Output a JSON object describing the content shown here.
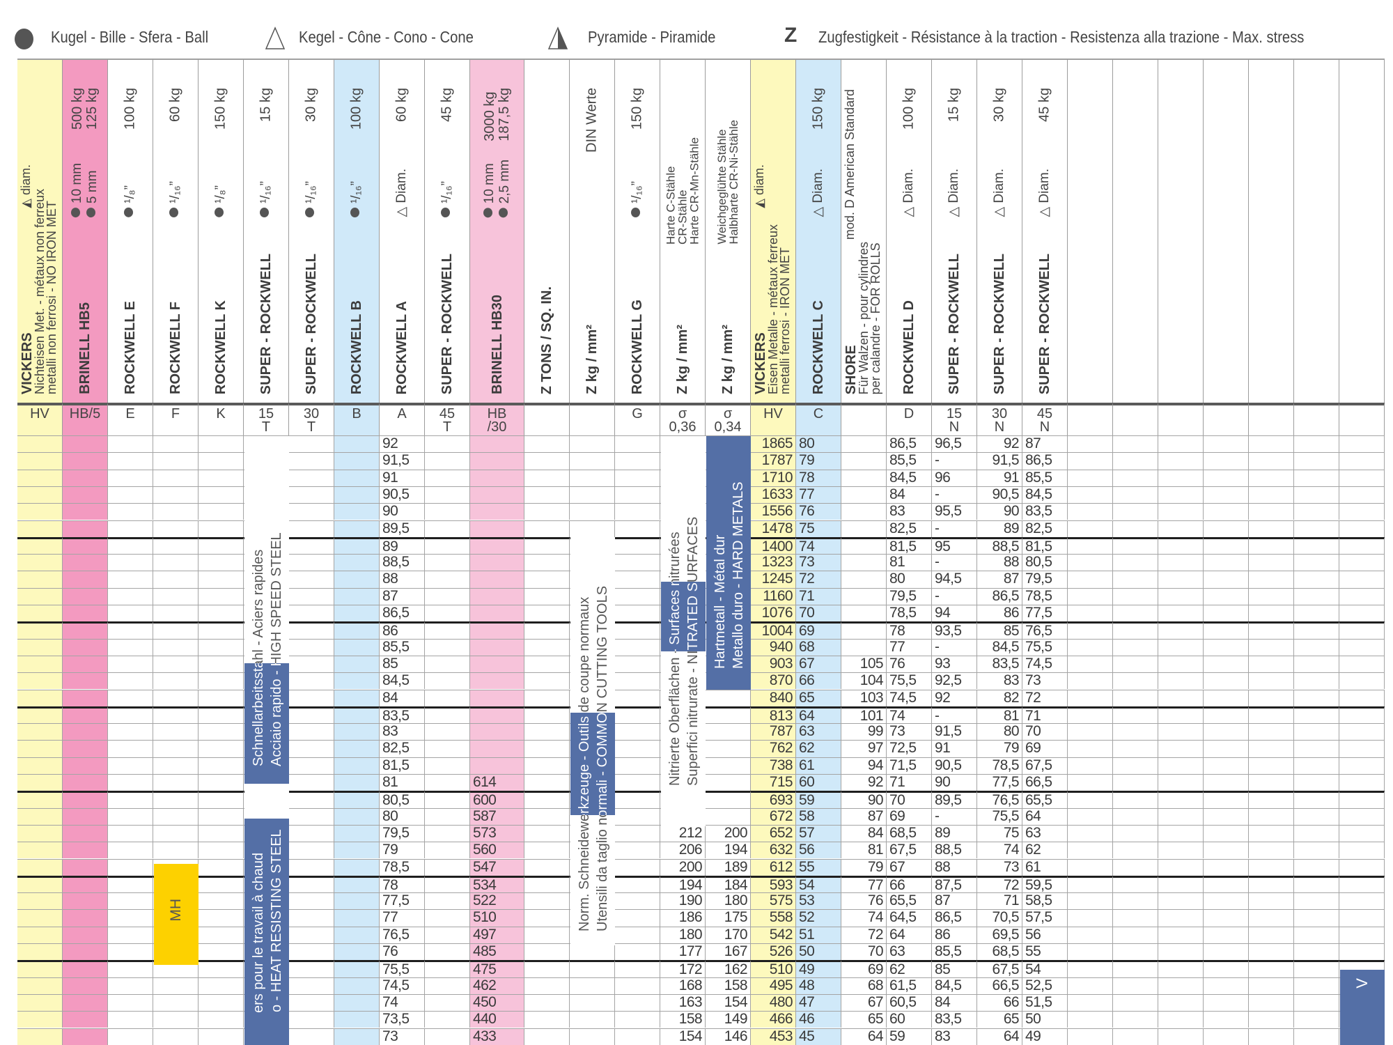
{
  "palette": {
    "yellow": "#fdf9bd",
    "pink": "#f39ac0",
    "blue": "#d0e9f9",
    "pinklight": "#f7c3da",
    "white": "#ffffff",
    "band_blue": "#546fa6",
    "mh_yellow": "#fdd100"
  },
  "legend": {
    "ball": {
      "icon": "ball-icon",
      "text": "Kugel - Bille - Sfera - Ball"
    },
    "cone": {
      "icon": "cone-icon",
      "text": "Kegel - Cône - Cono - Cone"
    },
    "pyramid": {
      "icon": "pyramid-icon",
      "text": "Pyramide - Piramide"
    },
    "tensile": {
      "symbol": "Z",
      "text": "Zugfestigkeit - Résistance à la traction - Resistenza alla trazione - Max. stress"
    }
  },
  "table": {
    "columns": [
      {
        "key": "HV1",
        "bg": "yellow",
        "header": {
          "title": "VICKERS",
          "subtitle_lines": [
            "Nichteisen Met. - métaux non ferreux",
            "metalli non ferrosi - NO IRON MET"
          ],
          "marker": {
            "icon": "pyramid",
            "text": "diam."
          }
        },
        "sub": "HV"
      },
      {
        "key": "HB5",
        "bg": "pink",
        "header": {
          "title": "BRINELL HB5",
          "spec_icon": "ball",
          "spec_lines": [
            "10 mm",
            "5 mm"
          ],
          "load_lines": [
            "500 kg",
            "125 kg"
          ]
        },
        "sub": "HB/5"
      },
      {
        "key": "E",
        "bg": "white",
        "header": {
          "title": "ROCKWELL  E",
          "spec": {
            "icon": "ball",
            "text": "¹/₈”"
          },
          "load": "100 kg"
        },
        "sub": "E"
      },
      {
        "key": "F",
        "bg": "white",
        "header": {
          "title": "ROCKWELL  F",
          "spec": {
            "icon": "ball",
            "text": "¹/₁₆”"
          },
          "load": "60 kg"
        },
        "sub": "F"
      },
      {
        "key": "K",
        "bg": "white",
        "header": {
          "title": "ROCKWELL  K",
          "spec": {
            "icon": "ball",
            "text": "¹/₈”"
          },
          "load": "150 kg"
        },
        "sub": "K"
      },
      {
        "key": "T15",
        "bg": "white",
        "header": {
          "title": "SUPER - ROCKWELL",
          "spec": {
            "icon": "ball",
            "text": "¹/₁₆”"
          },
          "load": "15 kg"
        },
        "sub": "15\nT"
      },
      {
        "key": "T30",
        "bg": "white",
        "header": {
          "title": "SUPER - ROCKWELL",
          "spec": {
            "icon": "ball",
            "text": "¹/₁₆”"
          },
          "load": "30 kg"
        },
        "sub": "30\nT"
      },
      {
        "key": "B",
        "bg": "blue",
        "header": {
          "title": "ROCKWELL  B",
          "spec": {
            "icon": "ball",
            "text": "¹/₁₆”"
          },
          "load": "100 kg"
        },
        "sub": "B"
      },
      {
        "key": "A",
        "bg": "white",
        "header": {
          "title": "ROCKWELL  A",
          "spec": {
            "icon": "cone",
            "text": "Diam."
          },
          "load": "60 kg"
        },
        "sub": "A"
      },
      {
        "key": "T45",
        "bg": "white",
        "header": {
          "title": "SUPER - ROCKWELL",
          "spec": {
            "icon": "ball",
            "text": "¹/₁₆”"
          },
          "load": "45 kg"
        },
        "sub": "45\nT"
      },
      {
        "key": "HB30",
        "bg": "pinklight",
        "header": {
          "title": "BRINELL HB30",
          "spec_icon": "ball",
          "spec_lines": [
            "10 mm",
            "2,5 mm"
          ],
          "load_lines": [
            "3000 kg",
            "187,5 kg"
          ]
        },
        "sub": "HB\n/30"
      },
      {
        "key": "ZT",
        "bg": "white",
        "header": {
          "title": "Z TONS / SQ. IN."
        },
        "sub": ""
      },
      {
        "key": "ZD",
        "bg": "white",
        "header": {
          "title": "Z kg / mm²",
          "load": "DIN Werte"
        },
        "sub": ""
      },
      {
        "key": "G",
        "bg": "white",
        "header": {
          "title": "ROCKWELL  G",
          "spec": {
            "icon": "ball",
            "text": "¹/₁₆”"
          },
          "load": "150 kg"
        },
        "sub": "G"
      },
      {
        "key": "Z036",
        "bg": "white",
        "header": {
          "title": "Z kg / mm²",
          "note_lines": [
            "Harte C-Stähle",
            "CR-Stähle",
            "Harte CR-Mn-Stähle"
          ]
        },
        "sub": "σ\n0,36"
      },
      {
        "key": "Z034",
        "bg": "white",
        "header": {
          "title": "Z kg / mm²",
          "note_lines": [
            "Weichgeglühte Stähle",
            "Halbharte CR-Ni-Stähle"
          ]
        },
        "sub": "σ\n0,34"
      },
      {
        "key": "HV2",
        "bg": "yellow",
        "header": {
          "title": "VICKERS",
          "subtitle_lines": [
            "Eisen Metalle - métaux ferreux",
            "metalli ferrosi - IRON MET"
          ],
          "marker": {
            "icon": "pyramid",
            "text": "diam."
          }
        },
        "sub": "HV"
      },
      {
        "key": "C",
        "bg": "blue",
        "header": {
          "title": "ROCKWELL  C",
          "spec": {
            "icon": "cone",
            "text": "Diam."
          },
          "load": "150 kg"
        },
        "sub": "C"
      },
      {
        "key": "SH",
        "bg": "white",
        "header": {
          "title": "SHORE",
          "subtitle_lines": [
            "Für Walzen - pour cylindres",
            "per calandre - FOR ROLLS"
          ],
          "aside": "mod. D  American Standard"
        },
        "sub": ""
      },
      {
        "key": "D",
        "bg": "white",
        "header": {
          "title": "ROCKWELL  D",
          "spec": {
            "icon": "cone",
            "text": "Diam."
          },
          "load": "100 kg"
        },
        "sub": "D"
      },
      {
        "key": "N15",
        "bg": "white",
        "header": {
          "title": "SUPER - ROCKWELL",
          "spec": {
            "icon": "cone",
            "text": "Diam."
          },
          "load": "15 kg"
        },
        "sub": "15\nN"
      },
      {
        "key": "N30",
        "bg": "white",
        "header": {
          "title": "SUPER - ROCKWELL",
          "spec": {
            "icon": "cone",
            "text": "Diam."
          },
          "load": "30 kg"
        },
        "sub": "30\nN"
      },
      {
        "key": "N45",
        "bg": "white",
        "header": {
          "title": "SUPER - ROCKWELL",
          "spec": {
            "icon": "cone",
            "text": "Diam."
          },
          "load": "45 kg"
        },
        "sub": "45\nN"
      },
      {
        "key": "X23",
        "bg": "white"
      },
      {
        "key": "X24",
        "bg": "white"
      },
      {
        "key": "X25",
        "bg": "white"
      },
      {
        "key": "X26",
        "bg": "white"
      },
      {
        "key": "X27",
        "bg": "white"
      },
      {
        "key": "X28",
        "bg": "white"
      },
      {
        "key": "X29",
        "bg": "white"
      }
    ],
    "values": {
      "A": [
        "92",
        "91,5",
        "91",
        "90,5",
        "90",
        "89,5",
        "89",
        "88,5",
        "88",
        "87",
        "86,5",
        "86",
        "85,5",
        "85",
        "84,5",
        "84",
        "83,5",
        "83",
        "82,5",
        "81,5",
        "81",
        "80,5",
        "80",
        "79,5",
        "79",
        "78,5",
        "78",
        "77,5",
        "77",
        "76,5",
        "76",
        "75,5",
        "74,5",
        "74",
        "73,5",
        "73"
      ],
      "HB30": [
        "",
        "",
        "",
        "",
        "",
        "",
        "",
        "",
        "",
        "",
        "",
        "",
        "",
        "",
        "",
        "",
        "",
        "",
        "",
        "",
        "614",
        "600",
        "587",
        "573",
        "560",
        "547",
        "534",
        "522",
        "510",
        "497",
        "485",
        "475",
        "462",
        "450",
        "440",
        "433"
      ],
      "Z036": [
        "",
        "",
        "",
        "",
        "",
        "",
        "",
        "",
        "",
        "",
        "",
        "",
        "",
        "",
        "",
        "",
        "",
        "",
        "",
        "",
        "",
        "",
        "",
        "212",
        "206",
        "200",
        "194",
        "190",
        "186",
        "180",
        "177",
        "172",
        "168",
        "163",
        "158",
        "154"
      ],
      "Z034": [
        "",
        "",
        "",
        "",
        "",
        "",
        "",
        "",
        "",
        "",
        "",
        "",
        "",
        "",
        "",
        "",
        "",
        "",
        "",
        "",
        "",
        "",
        "",
        "200",
        "194",
        "189",
        "184",
        "180",
        "175",
        "170",
        "167",
        "162",
        "158",
        "154",
        "149",
        "146"
      ],
      "HV2": [
        "1865",
        "1787",
        "1710",
        "1633",
        "1556",
        "1478",
        "1400",
        "1323",
        "1245",
        "1160",
        "1076",
        "1004",
        "940",
        "903",
        "870",
        "840",
        "813",
        "787",
        "762",
        "738",
        "715",
        "693",
        "672",
        "652",
        "632",
        "612",
        "593",
        "575",
        "558",
        "542",
        "526",
        "510",
        "495",
        "480",
        "466",
        "453"
      ],
      "C": [
        "80",
        "79",
        "78",
        "77",
        "76",
        "75",
        "74",
        "73",
        "72",
        "71",
        "70",
        "69",
        "68",
        "67",
        "66",
        "65",
        "64",
        "63",
        "62",
        "61",
        "60",
        "59",
        "58",
        "57",
        "56",
        "55",
        "54",
        "53",
        "52",
        "51",
        "50",
        "49",
        "48",
        "47",
        "46",
        "45"
      ],
      "SH": [
        "",
        "",
        "",
        "",
        "",
        "",
        "",
        "",
        "",
        "",
        "",
        "",
        "",
        "105",
        "104",
        "103",
        "101",
        "99",
        "97",
        "94",
        "92",
        "90",
        "87",
        "84",
        "81",
        "79",
        "77",
        "76",
        "74",
        "72",
        "70",
        "69",
        "68",
        "67",
        "65",
        "64"
      ],
      "D": [
        "86,5",
        "85,5",
        "84,5",
        "84",
        "83",
        "82,5",
        "81,5",
        "81",
        "80",
        "79,5",
        "78,5",
        "78",
        "77",
        "76",
        "75,5",
        "74,5",
        "74",
        "73",
        "72,5",
        "71,5",
        "71",
        "70",
        "69",
        "68,5",
        "67,5",
        "67",
        "66",
        "65,5",
        "64,5",
        "64",
        "63",
        "62",
        "61,5",
        "60,5",
        "60",
        "59"
      ],
      "N15": [
        "96,5",
        "-",
        "96",
        "-",
        "95,5",
        "-",
        "95",
        "-",
        "94,5",
        "-",
        "94",
        "93,5",
        "-",
        "93",
        "92,5",
        "92",
        "-",
        "91,5",
        "91",
        "90,5",
        "90",
        "89,5",
        "-",
        "89",
        "88,5",
        "88",
        "87,5",
        "87",
        "86,5",
        "86",
        "85,5",
        "85",
        "84,5",
        "84",
        "83,5",
        "83"
      ],
      "N30": [
        "92",
        "91,5",
        "91",
        "90,5",
        "90",
        "89",
        "88,5",
        "88",
        "87",
        "86,5",
        "86",
        "85",
        "84,5",
        "83,5",
        "83",
        "82",
        "81",
        "80",
        "79",
        "78,5",
        "77,5",
        "76,5",
        "75,5",
        "75",
        "74",
        "73",
        "72",
        "71",
        "70,5",
        "69,5",
        "68,5",
        "67,5",
        "66,5",
        "66",
        "65",
        "64"
      ],
      "N45": [
        "87",
        "86,5",
        "85,5",
        "84,5",
        "83,5",
        "82,5",
        "81,5",
        "80,5",
        "79,5",
        "78,5",
        "77,5",
        "76,5",
        "75,5",
        "74,5",
        "73",
        "72",
        "71",
        "70",
        "69",
        "67,5",
        "66,5",
        "65,5",
        "64",
        "63",
        "62",
        "61",
        "59,5",
        "58,5",
        "57,5",
        "56",
        "55",
        "54",
        "52,5",
        "51,5",
        "50",
        "49"
      ]
    }
  },
  "bands": {
    "high_speed": {
      "line1": "Schnellarbeitsstahl - Aciers rapides",
      "line2": "Acciaio rapido - HIGH SPEED STEEL"
    },
    "heat_resisting": {
      "line1": "ers pour le travail à chaud",
      "line2": "o - HEAT RESISTING STEEL"
    },
    "cutting_tools": {
      "line1": "Norm. Schneidewerkzeuge - Outils de coupe normaux",
      "line2": "Utensili da taglio normali - COMMON CUTTING TOOLS"
    },
    "nitrated": {
      "line1": "Nitrierte Oberflächen - Surfaces nitrurées",
      "line2": "Superfici nitrurate - NITRATED SURFACES"
    },
    "hard_metals": {
      "line1": "Hartmetall - Métal dur",
      "line2": "Metallo duro - HARD METALS"
    }
  },
  "mh_box": {
    "text": "MH"
  },
  "v_box": {
    "text": "V"
  }
}
